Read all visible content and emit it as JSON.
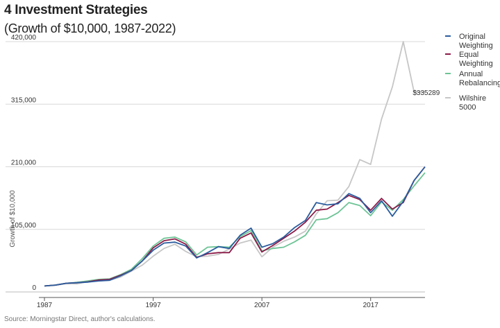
{
  "chart_data": {
    "type": "line",
    "title": "4 Investment Strategies",
    "subtitle": "(Growth of $10,000, 1987-2022)",
    "ylabel": "Growth of $10,000",
    "xlabel": "",
    "source": "Source: Morningstar Direct, author's calculations.",
    "x": [
      1987,
      1988,
      1989,
      1990,
      1991,
      1992,
      1993,
      1994,
      1995,
      1996,
      1997,
      1998,
      1999,
      2000,
      2001,
      2002,
      2003,
      2004,
      2005,
      2006,
      2007,
      2008,
      2009,
      2010,
      2011,
      2012,
      2013,
      2014,
      2015,
      2016,
      2017,
      2018,
      2019,
      2020,
      2021,
      2022
    ],
    "ylim": [
      0,
      420000
    ],
    "yticks": [
      0,
      105000,
      210000,
      315000,
      420000
    ],
    "ytick_labels": [
      "0",
      "105,000",
      "210,000",
      "315,000",
      "420,000"
    ],
    "xticks": [
      1987,
      1997,
      2007,
      2017
    ],
    "xtick_labels": [
      "1987",
      "1997",
      "2007",
      "2017"
    ],
    "grid": "horizontal",
    "legend": "right",
    "series": [
      {
        "name": "Original Weighting",
        "color": "#2b5c9e",
        "values": [
          10000,
          11500,
          14500,
          15500,
          16500,
          18500,
          19500,
          27000,
          36000,
          52000,
          70000,
          82000,
          83500,
          77000,
          57000,
          66000,
          76000,
          73000,
          95000,
          107000,
          75000,
          81000,
          92000,
          108000,
          120000,
          150000,
          146000,
          148000,
          165000,
          157000,
          133000,
          153000,
          127000,
          152000,
          187000,
          210000
        ]
      },
      {
        "name": "Equal Weighting",
        "color": "#8b1a47",
        "values": [
          10000,
          11500,
          14500,
          15500,
          17000,
          20000,
          21000,
          28000,
          36000,
          52000,
          74000,
          86000,
          89000,
          80000,
          58000,
          64000,
          66000,
          66000,
          90000,
          99000,
          67000,
          78000,
          90000,
          102000,
          117000,
          137000,
          139000,
          150000,
          162000,
          155000,
          137000,
          157000,
          139000,
          150000,
          187000,
          210000
        ]
      },
      {
        "name": "Annual Rebalancing",
        "color": "#6dc495",
        "values": [
          10000,
          11500,
          14500,
          16000,
          18500,
          21000,
          22000,
          29000,
          38000,
          56000,
          77000,
          90000,
          92000,
          84000,
          62000,
          75000,
          76000,
          75000,
          93000,
          103000,
          69000,
          73000,
          75000,
          84000,
          95000,
          121000,
          123000,
          133000,
          150000,
          145000,
          128000,
          151000,
          137000,
          155000,
          178000,
          200000
        ]
      },
      {
        "name": "Wilshire 5000",
        "color": "#c6c6c6",
        "values": [
          10000,
          11000,
          14000,
          13500,
          17500,
          18500,
          19500,
          25000,
          35000,
          45000,
          60000,
          73000,
          80000,
          68000,
          59000,
          60000,
          63000,
          72000,
          82000,
          87000,
          59000,
          75000,
          85000,
          92000,
          102000,
          131000,
          153000,
          154000,
          177000,
          222000,
          214000,
          290000,
          344000,
          420000,
          335289,
          335289
        ]
      }
    ],
    "annotations": [
      {
        "series": "Wilshire 5000",
        "x": 2021,
        "text": "$335289"
      }
    ]
  }
}
